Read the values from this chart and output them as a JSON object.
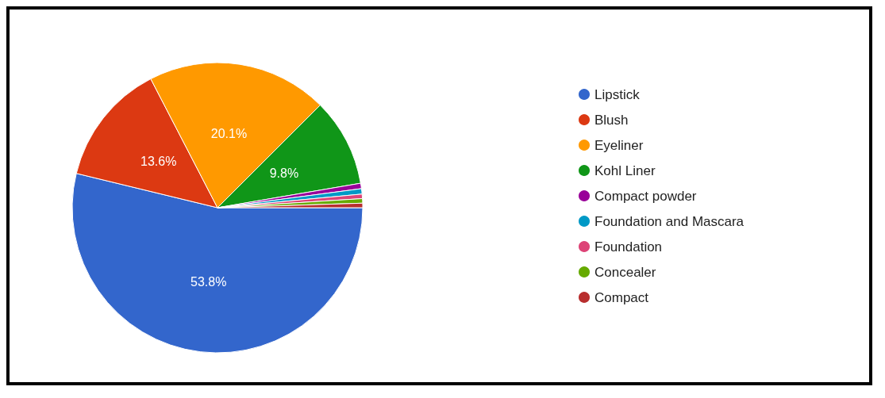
{
  "chart_data": {
    "type": "pie",
    "categories": [
      "Lipstick",
      "Blush",
      "Eyeliner",
      "Kohl Liner",
      "Compact powder",
      "Foundation and Mascara",
      "Foundation",
      "Concealer",
      "Compact"
    ],
    "values": [
      53.8,
      13.6,
      20.1,
      9.8,
      0.6,
      0.6,
      0.5,
      0.5,
      0.5
    ],
    "colors": [
      "#3366cc",
      "#dc3912",
      "#ff9900",
      "#109618",
      "#990099",
      "#0099c6",
      "#dd4477",
      "#66aa00",
      "#b82e2e"
    ],
    "value_labels": [
      "53.8%",
      "13.6%",
      "20.1%",
      "9.8%",
      null,
      null,
      null,
      null,
      null
    ],
    "legend": "right"
  }
}
